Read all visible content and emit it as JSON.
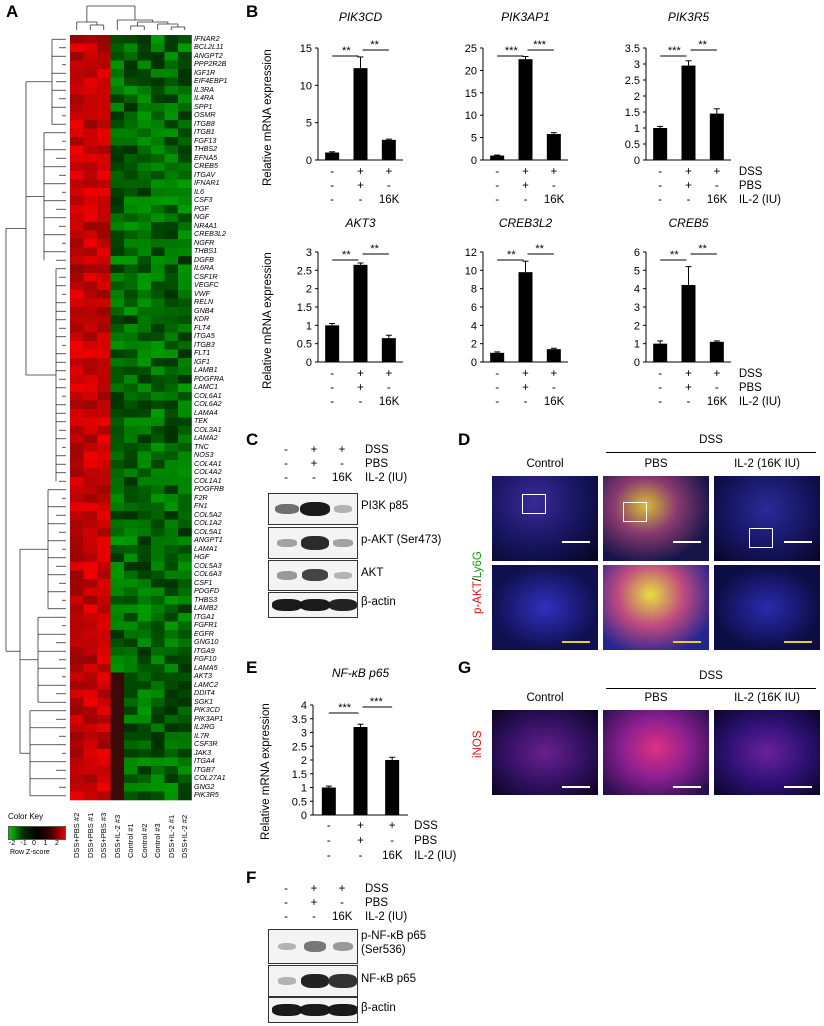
{
  "panels": {
    "A": "A",
    "B": "B",
    "C": "C",
    "D": "D",
    "E": "E",
    "F": "F",
    "G": "G"
  },
  "heatmap": {
    "genes": [
      "IFNAR2",
      "BCL2L11",
      "ANGPT2",
      "PPP2R2B",
      "IGF1R",
      "EIF4EBP1",
      "IL3RA",
      "IL4RA",
      "SPP1",
      "OSMR",
      "ITGB8",
      "ITGB1",
      "FGF13",
      "THBS2",
      "EFNA5",
      "CREB5",
      "ITGAV",
      "IFNAR1",
      "IL6",
      "CSF3",
      "PGF",
      "NGF",
      "NR4A1",
      "CREB3L2",
      "NGFR",
      "THBS1",
      "DGFB",
      "IL6RA",
      "CSF1R",
      "VEGFC",
      "VWF",
      "RELN",
      "GNB4",
      "KDR",
      "FLT4",
      "ITGA5",
      "ITGB3",
      "FLT1",
      "IGF1",
      "LAMB1",
      "PDGFRA",
      "LAMC1",
      "COL6A1",
      "COL6A2",
      "LAMA4",
      "TEK",
      "COL3A1",
      "LAMA2",
      "TNC",
      "NOS3",
      "COL4A1",
      "COL4A2",
      "COL1A1",
      "PDGFRB",
      "F2R",
      "FN1",
      "COL5A2",
      "COL1A2",
      "COL5A1",
      "ANGPT1",
      "LAMA1",
      "HGF",
      "COL5A3",
      "COL6A3",
      "CSF1",
      "PDGFD",
      "THBS3",
      "LAMB2",
      "ITGA1",
      "FGFR1",
      "EGFR",
      "GNG10",
      "ITGA9",
      "FGF10",
      "LAMA5",
      "AKT3",
      "LAMC2",
      "DDIT4",
      "SGK1",
      "PIK3CD",
      "PIK3AP1",
      "IL2RG",
      "IL7R",
      "CSF3R",
      "JAK3",
      "ITGA4",
      "ITGB7",
      "COL27A1",
      "GNG2",
      "PIK3R5"
    ],
    "samples": [
      "DSS+PBS #2",
      "DSS+PBS #1",
      "DSS+PBS #3",
      "DSS+IL-2 #3",
      "Control #1",
      "Control #2",
      "Control #3",
      "DSS+IL-2 #1",
      "DSS+IL-2 #2"
    ],
    "color_key": {
      "title": "Color Key",
      "ticks": [
        "-2",
        "-1",
        "0",
        "1",
        "2"
      ],
      "label": "Row Z-score"
    }
  },
  "conditions": {
    "row_labels": [
      "DSS",
      "PBS",
      "IL-2 (IU)"
    ],
    "rows": [
      [
        "-",
        "+",
        "+"
      ],
      [
        "-",
        "+",
        "-"
      ],
      [
        "-",
        "-",
        "16K"
      ]
    ]
  },
  "chart_data": [
    {
      "type": "bar",
      "title": "PIK3CD",
      "ylabel": "Relative mRNA expression",
      "categories": [
        "Control",
        "DSS+PBS",
        "DSS+IL-2"
      ],
      "values": [
        1.0,
        12.3,
        2.7
      ],
      "errors": [
        0.1,
        1.5,
        0.1
      ],
      "ylim": [
        0,
        15
      ],
      "yticks": [
        "0",
        "5",
        "10",
        "15"
      ],
      "sig": [
        "**",
        "**"
      ]
    },
    {
      "type": "bar",
      "title": "PIK3AP1",
      "categories": [
        "Control",
        "DSS+PBS",
        "DSS+IL-2"
      ],
      "values": [
        1.0,
        22.5,
        5.8
      ],
      "errors": [
        0.1,
        0.6,
        0.3
      ],
      "ylim": [
        0,
        25
      ],
      "yticks": [
        "0",
        "5",
        "10",
        "15",
        "20",
        "25"
      ],
      "sig": [
        "***",
        "***"
      ]
    },
    {
      "type": "bar",
      "title": "PIK3R5",
      "categories": [
        "Control",
        "DSS+PBS",
        "DSS+IL-2"
      ],
      "values": [
        1.0,
        2.95,
        1.45
      ],
      "errors": [
        0.05,
        0.15,
        0.15
      ],
      "ylim": [
        0,
        3.5
      ],
      "yticks": [
        "0",
        "0.5",
        "1",
        "1.5",
        "2",
        "2.5",
        "3",
        "3.5"
      ],
      "sig": [
        "***",
        "**"
      ]
    },
    {
      "type": "bar",
      "title": "AKT3",
      "ylabel": "Relative mRNA expression",
      "categories": [
        "Control",
        "DSS+PBS",
        "DSS+IL-2"
      ],
      "values": [
        1.0,
        2.65,
        0.65
      ],
      "errors": [
        0.05,
        0.05,
        0.08
      ],
      "ylim": [
        0,
        3
      ],
      "yticks": [
        "0",
        "0.5",
        "1",
        "1.5",
        "2",
        "2.5",
        "3"
      ],
      "sig": [
        "**",
        "**"
      ]
    },
    {
      "type": "bar",
      "title": "CREB3L2",
      "categories": [
        "Control",
        "DSS+PBS",
        "DSS+IL-2"
      ],
      "values": [
        1.0,
        9.8,
        1.4
      ],
      "errors": [
        0.1,
        1.2,
        0.1
      ],
      "ylim": [
        0,
        12
      ],
      "yticks": [
        "0",
        "2",
        "4",
        "6",
        "8",
        "10",
        "12"
      ],
      "sig": [
        "**",
        "**"
      ]
    },
    {
      "type": "bar",
      "title": "CREB5",
      "categories": [
        "Control",
        "DSS+PBS",
        "DSS+IL-2"
      ],
      "values": [
        1.0,
        4.2,
        1.1
      ],
      "errors": [
        0.15,
        1.0,
        0.05
      ],
      "ylim": [
        0,
        6
      ],
      "yticks": [
        "0",
        "1",
        "2",
        "3",
        "4",
        "5",
        "6"
      ],
      "sig": [
        "**",
        "**"
      ]
    },
    {
      "type": "bar",
      "title": "NF-κB p65",
      "ylabel": "Relative mRNA expression",
      "categories": [
        "Control",
        "DSS+PBS",
        "DSS+IL-2"
      ],
      "values": [
        1.0,
        3.2,
        2.0
      ],
      "errors": [
        0.05,
        0.1,
        0.1
      ],
      "ylim": [
        0,
        4
      ],
      "yticks": [
        "0",
        "0.5",
        "1",
        "1.5",
        "2",
        "2.5",
        "3",
        "3.5",
        "4"
      ],
      "sig": [
        "***",
        "***"
      ]
    }
  ],
  "blot_C": {
    "labels": [
      "PI3K p85",
      "p-AKT (Ser473)",
      "AKT",
      "β-actin"
    ],
    "intensity": [
      [
        0.45,
        0.95,
        0.05
      ],
      [
        0.15,
        0.85,
        0.15
      ],
      [
        0.2,
        0.7,
        0.05
      ],
      [
        0.95,
        0.95,
        0.9
      ]
    ]
  },
  "blot_F": {
    "labels": [
      "p-NF-κB p65 (Ser536)",
      "NF-κB p65",
      "β-actin"
    ],
    "intensity": [
      [
        0.05,
        0.4,
        0.2
      ],
      [
        0.05,
        0.9,
        0.8
      ],
      [
        0.95,
        0.95,
        0.95
      ]
    ]
  },
  "panel_D": {
    "group": "DSS",
    "columns": [
      "Control",
      "PBS",
      "IL-2 (16K IU)"
    ],
    "stain_red": "p-AKT",
    "stain_sep": "/",
    "stain_green": "Ly6G"
  },
  "panel_G": {
    "group": "DSS",
    "columns": [
      "Control",
      "PBS",
      "IL-2 (16K IU)"
    ],
    "stain": "iNOS"
  }
}
